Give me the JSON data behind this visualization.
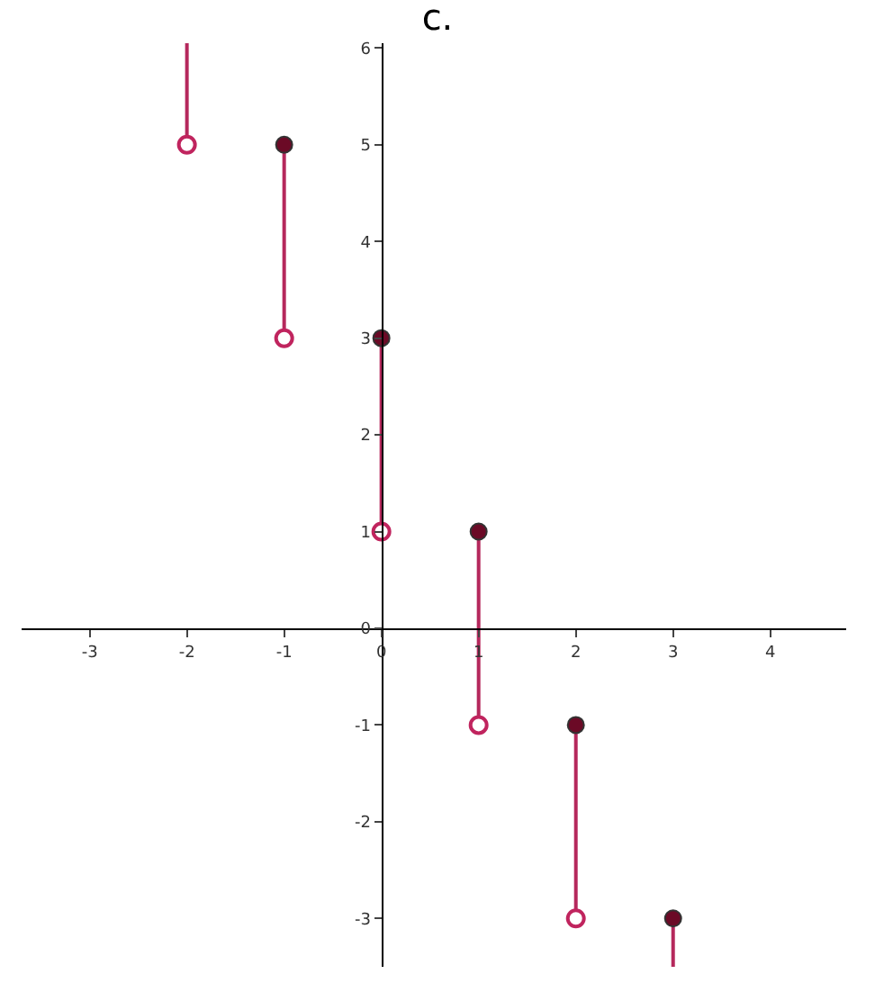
{
  "chart_data": {
    "type": "line",
    "title": "c.",
    "xlim": [
      -3.7,
      4.78
    ],
    "ylim": [
      -3.5,
      6.05
    ],
    "xticks": [
      -3,
      -2,
      -1,
      0,
      1,
      2,
      3,
      4
    ],
    "yticks": [
      -3,
      -2,
      -1,
      0,
      1,
      2,
      3,
      4,
      5,
      6
    ],
    "marker": "none",
    "series": [
      {
        "color": "#b5285c",
        "x": [
          -2,
          -2
        ],
        "values": [
          5,
          6.05
        ]
      },
      {
        "color": "#b5285c",
        "x": [
          -1,
          -1
        ],
        "values": [
          3,
          5
        ]
      },
      {
        "color": "#b5285c",
        "x": [
          0,
          0
        ],
        "values": [
          1,
          3
        ]
      },
      {
        "color": "#b5285c",
        "x": [
          1,
          1
        ],
        "values": [
          -1,
          1
        ]
      },
      {
        "color": "#b5285c",
        "x": [
          2,
          2
        ],
        "values": [
          -3,
          -1
        ]
      },
      {
        "color": "#b5285c",
        "x": [
          3,
          3
        ],
        "values": [
          -3.5,
          -3
        ]
      },
      {
        "type": "scatter",
        "marker": "circle",
        "color": "#6b0a26",
        "x": [
          -1,
          0,
          1,
          2,
          3
        ],
        "values": [
          5,
          3,
          1,
          -1,
          -3
        ]
      },
      {
        "type": "scatter",
        "marker": "circle-open",
        "color": "#c0245e",
        "x": [
          -2,
          -1,
          0,
          1,
          2
        ],
        "values": [
          5,
          3,
          1,
          -1,
          -3
        ]
      }
    ]
  }
}
